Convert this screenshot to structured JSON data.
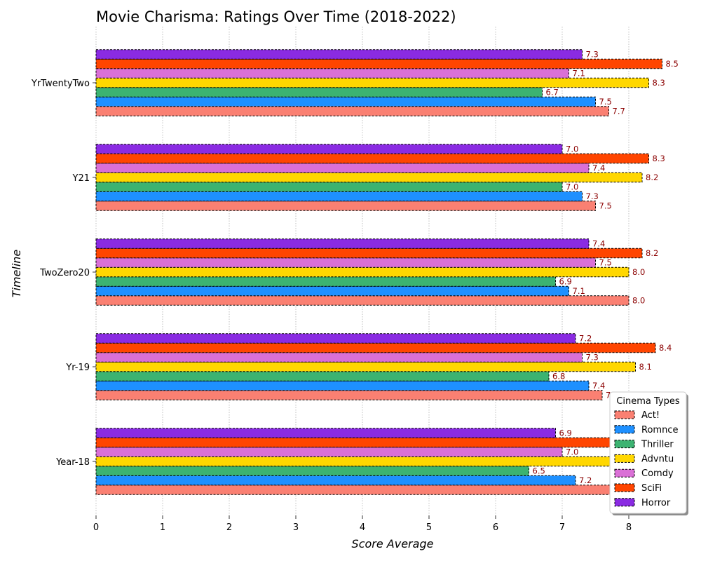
{
  "chart_data": {
    "type": "bar",
    "orientation": "horizontal",
    "title": "Movie Charisma: Ratings Over Time (2018-2022)",
    "xlabel": "Score Average",
    "ylabel": "Timeline",
    "xlim": [
      0,
      8.93
    ],
    "xticks": [
      "0",
      "1",
      "2",
      "3",
      "4",
      "5",
      "6",
      "7",
      "8"
    ],
    "grid": "vertical-dotted",
    "categories": [
      "Year-18",
      "Yr-19",
      "TwoZero20",
      "Y21",
      "YrTwentyTwo"
    ],
    "series": [
      {
        "name": "Act!",
        "color": "#fa8072",
        "values": [
          7.8,
          7.6,
          8.0,
          7.5,
          7.7
        ]
      },
      {
        "name": "Romnce",
        "color": "#1e90ff",
        "values": [
          7.2,
          7.4,
          7.1,
          7.3,
          7.5
        ]
      },
      {
        "name": "Thriller",
        "color": "#3cb371",
        "values": [
          6.5,
          6.8,
          6.9,
          7.0,
          6.7
        ]
      },
      {
        "name": "Advntu",
        "color": "#ffd700",
        "values": [
          8.2,
          8.1,
          8.0,
          8.2,
          8.3
        ]
      },
      {
        "name": "Comdy",
        "color": "#da70d6",
        "values": [
          7.0,
          7.3,
          7.5,
          7.4,
          7.1
        ]
      },
      {
        "name": "SciFi",
        "color": "#ff4500",
        "values": [
          8.3,
          8.4,
          8.2,
          8.3,
          8.5
        ]
      },
      {
        "name": "Horror",
        "color": "#8a2be2",
        "values": [
          6.9,
          7.2,
          7.4,
          7.0,
          7.3
        ]
      }
    ],
    "legend": {
      "title": "Cinema Types",
      "position": "bottom-right"
    }
  }
}
